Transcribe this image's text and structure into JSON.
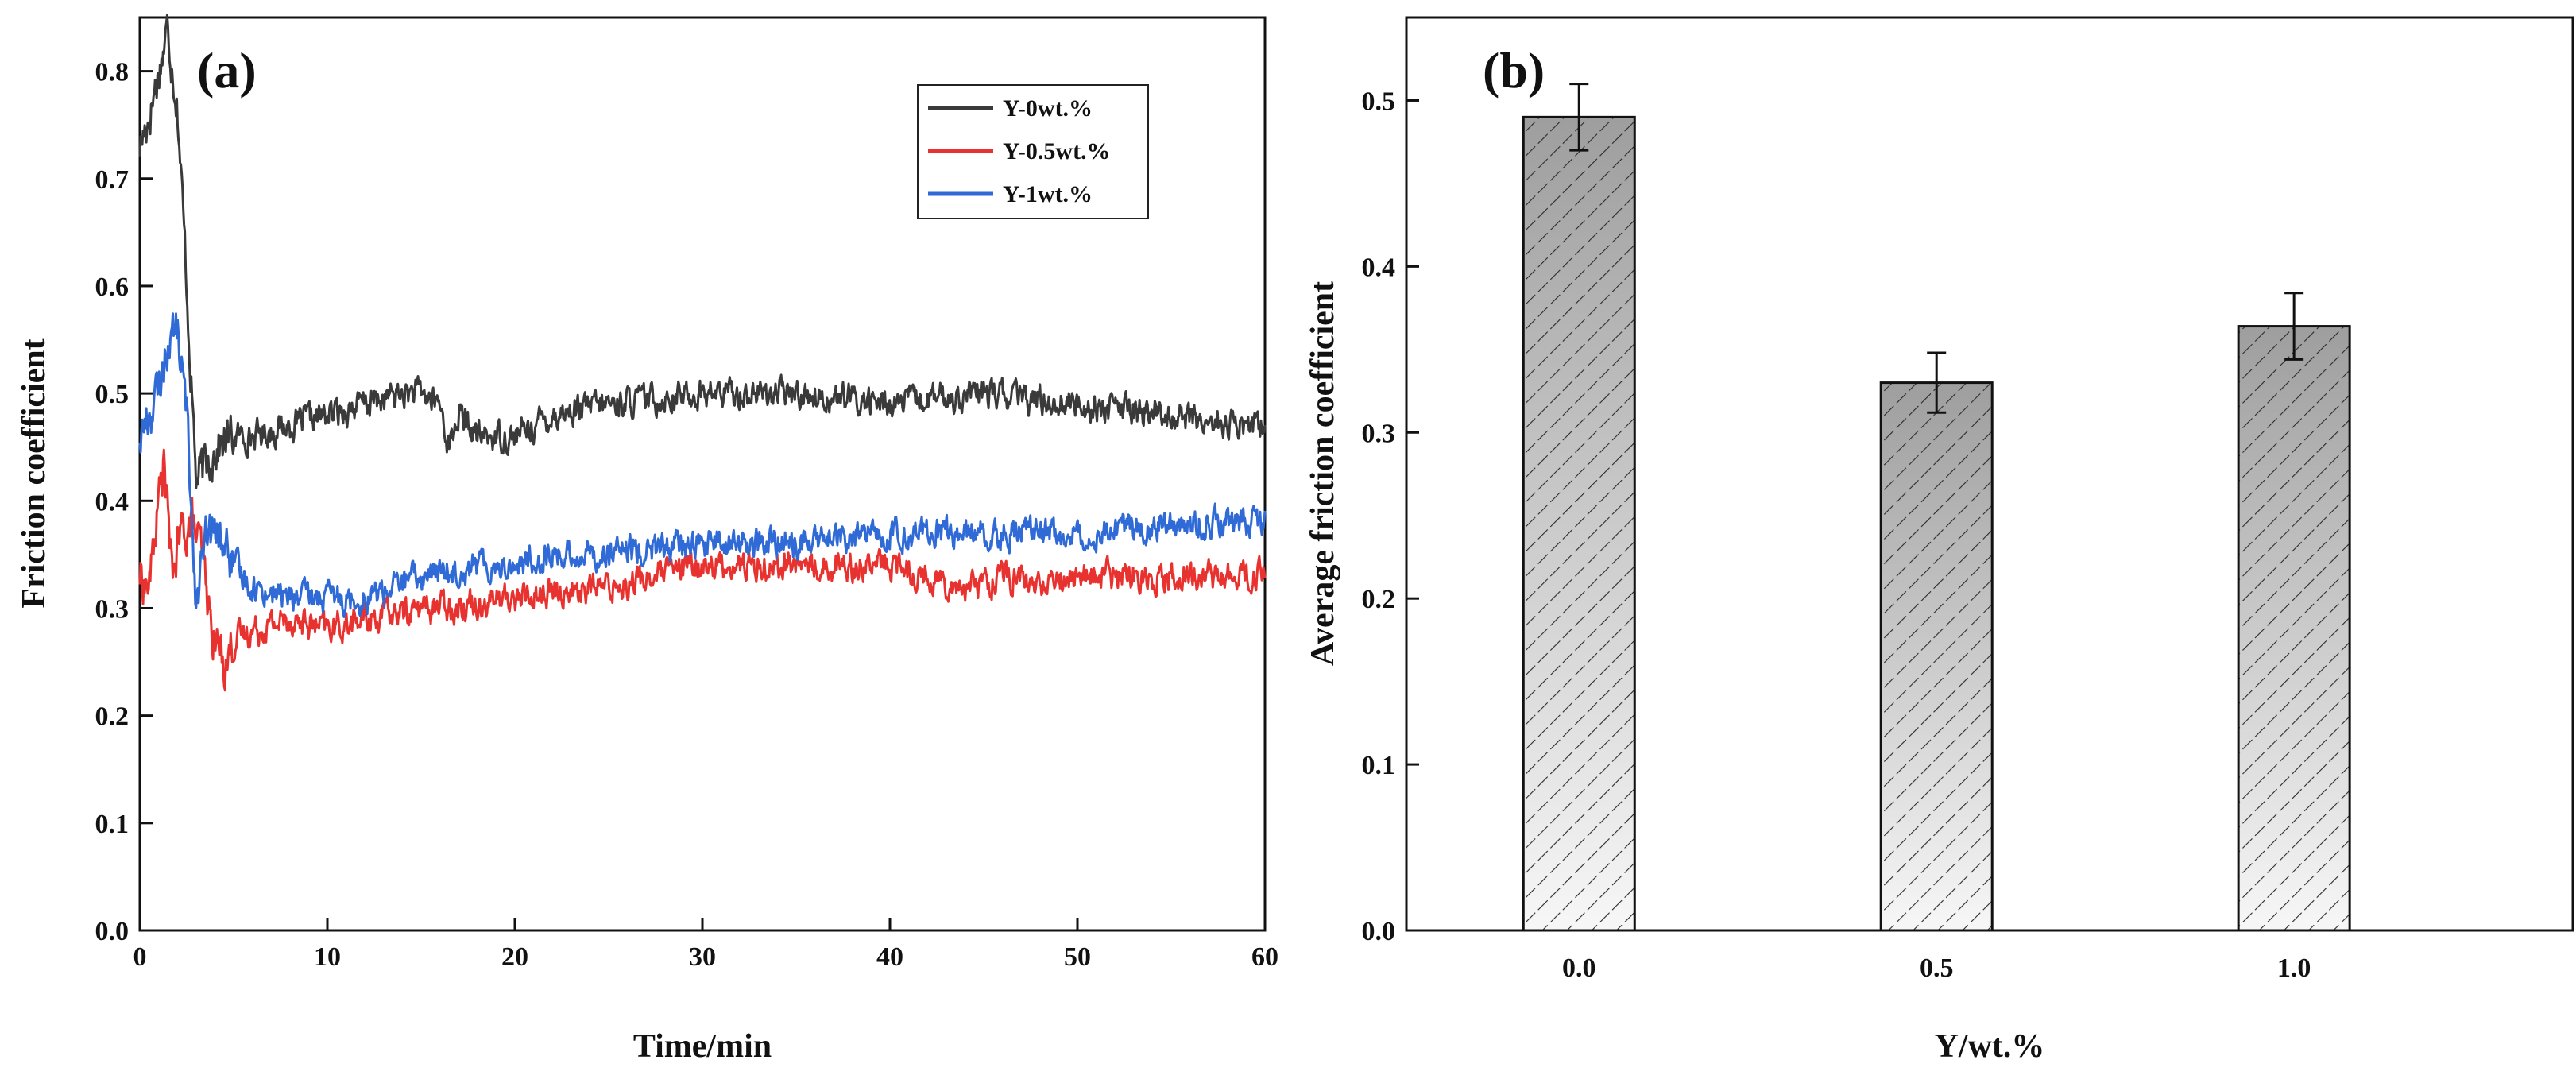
{
  "chart_data": [
    {
      "panel_label": "(a)",
      "type": "line",
      "xlabel": "Time/min",
      "ylabel": "Friction coefficient",
      "xlim": [
        0,
        60
      ],
      "ylim": [
        0.0,
        0.85
      ],
      "xticks": [
        "0",
        "10",
        "20",
        "30",
        "40",
        "50",
        "60"
      ],
      "yticks": [
        "0.0",
        "0.1",
        "0.2",
        "0.3",
        "0.4",
        "0.5",
        "0.6",
        "0.7",
        "0.8"
      ],
      "legend_position": "top-right",
      "series": [
        {
          "name": "Y-0wt.%",
          "color": "#3a3a3a",
          "x": [
            0,
            0.5,
            1.0,
            1.5,
            2.0,
            2.5,
            3.0,
            3.5,
            4,
            5,
            6,
            8,
            10,
            12,
            14,
            15,
            16,
            16.5,
            17,
            18,
            20,
            22,
            25,
            30,
            35,
            40,
            45,
            50,
            55,
            58,
            60
          ],
          "y": [
            0.73,
            0.76,
            0.8,
            0.84,
            0.77,
            0.6,
            0.42,
            0.43,
            0.45,
            0.46,
            0.46,
            0.47,
            0.48,
            0.49,
            0.5,
            0.5,
            0.49,
            0.45,
            0.48,
            0.46,
            0.46,
            0.48,
            0.49,
            0.5,
            0.5,
            0.49,
            0.5,
            0.49,
            0.48,
            0.47,
            0.47
          ]
        },
        {
          "name": "Y-0.5wt.%",
          "color": "#e8322f",
          "x": [
            0,
            0.5,
            1.0,
            1.3,
            1.7,
            2.2,
            2.8,
            3.3,
            3.8,
            4.5,
            5,
            6,
            8,
            10,
            12,
            15,
            20,
            25,
            30,
            35,
            40,
            42,
            44,
            46,
            48,
            50,
            55,
            60
          ],
          "y": [
            0.33,
            0.32,
            0.4,
            0.44,
            0.33,
            0.37,
            0.38,
            0.35,
            0.28,
            0.25,
            0.27,
            0.28,
            0.29,
            0.28,
            0.29,
            0.3,
            0.31,
            0.32,
            0.34,
            0.34,
            0.34,
            0.33,
            0.32,
            0.33,
            0.32,
            0.33,
            0.33,
            0.33
          ]
        },
        {
          "name": "Y-1wt.%",
          "color": "#2f6ad6",
          "x": [
            0,
            0.5,
            1.0,
            1.5,
            2.0,
            2.5,
            3.0,
            3.5,
            4.0,
            4.5,
            5,
            6,
            8,
            10,
            12,
            15,
            18,
            20,
            22,
            25,
            30,
            35,
            40,
            45,
            50,
            55,
            60
          ],
          "y": [
            0.46,
            0.48,
            0.5,
            0.55,
            0.56,
            0.48,
            0.31,
            0.36,
            0.37,
            0.36,
            0.34,
            0.32,
            0.31,
            0.31,
            0.31,
            0.33,
            0.34,
            0.34,
            0.35,
            0.35,
            0.36,
            0.36,
            0.37,
            0.37,
            0.37,
            0.38,
            0.38
          ]
        }
      ]
    },
    {
      "panel_label": "(b)",
      "type": "bar",
      "xlabel": "Y/wt.%",
      "ylabel": "Average  friction coefficient",
      "categories": [
        "0.0",
        "0.5",
        "1.0"
      ],
      "values": [
        0.49,
        0.33,
        0.364
      ],
      "errors": [
        0.02,
        0.018,
        0.02
      ],
      "ylim": [
        0.0,
        0.55
      ],
      "yticks": [
        "0.0",
        "0.1",
        "0.2",
        "0.3",
        "0.4",
        "0.5"
      ],
      "bar_fill": "hatched gray gradient"
    }
  ]
}
